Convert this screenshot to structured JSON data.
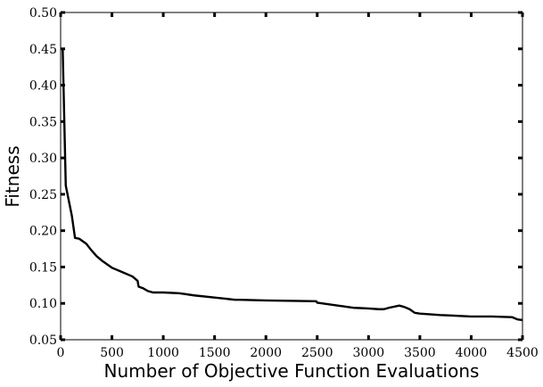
{
  "chart_data": {
    "type": "line",
    "xlabel": "Number of Objective Function Evaluations",
    "ylabel": "Fitness",
    "xlim": [
      0,
      4500
    ],
    "ylim": [
      0.05,
      0.5
    ],
    "x_ticks": [
      0,
      500,
      1000,
      1500,
      2000,
      2500,
      3000,
      3500,
      4000,
      4500
    ],
    "x_tick_labels": [
      "0",
      "500",
      "1000",
      "1500",
      "2000",
      "2500",
      "3000",
      "3500",
      "4000",
      "4500"
    ],
    "y_ticks": [
      0.05,
      0.1,
      0.15,
      0.2,
      0.25,
      0.3,
      0.35,
      0.4,
      0.45,
      0.5
    ],
    "y_tick_labels": [
      "0.05",
      "0.10",
      "0.15",
      "0.20",
      "0.25",
      "0.30",
      "0.35",
      "0.40",
      "0.45",
      "0.50"
    ],
    "grid": false,
    "line_color": "#000000",
    "series": [
      {
        "x": [
          0,
          20,
          50,
          110,
          140,
          180,
          250,
          300,
          350,
          400,
          500,
          600,
          700,
          750,
          760,
          800,
          850,
          900,
          1000,
          1150,
          1200,
          1300,
          1500,
          1700,
          1750,
          2000,
          2490,
          2500,
          2600,
          2700,
          2750,
          2800,
          2850,
          3000,
          3100,
          3150,
          3200,
          3300,
          3350,
          3400,
          3450,
          3500,
          3700,
          4000,
          4200,
          4400,
          4450,
          4500
        ],
        "y": [
          0.45,
          0.45,
          0.262,
          0.22,
          0.19,
          0.189,
          0.182,
          0.173,
          0.165,
          0.159,
          0.149,
          0.143,
          0.137,
          0.131,
          0.123,
          0.121,
          0.117,
          0.115,
          0.115,
          0.114,
          0.113,
          0.111,
          0.108,
          0.105,
          0.105,
          0.104,
          0.103,
          0.101,
          0.099,
          0.097,
          0.096,
          0.095,
          0.094,
          0.093,
          0.092,
          0.092,
          0.094,
          0.097,
          0.095,
          0.092,
          0.087,
          0.086,
          0.084,
          0.082,
          0.082,
          0.081,
          0.078,
          0.077
        ]
      }
    ]
  }
}
